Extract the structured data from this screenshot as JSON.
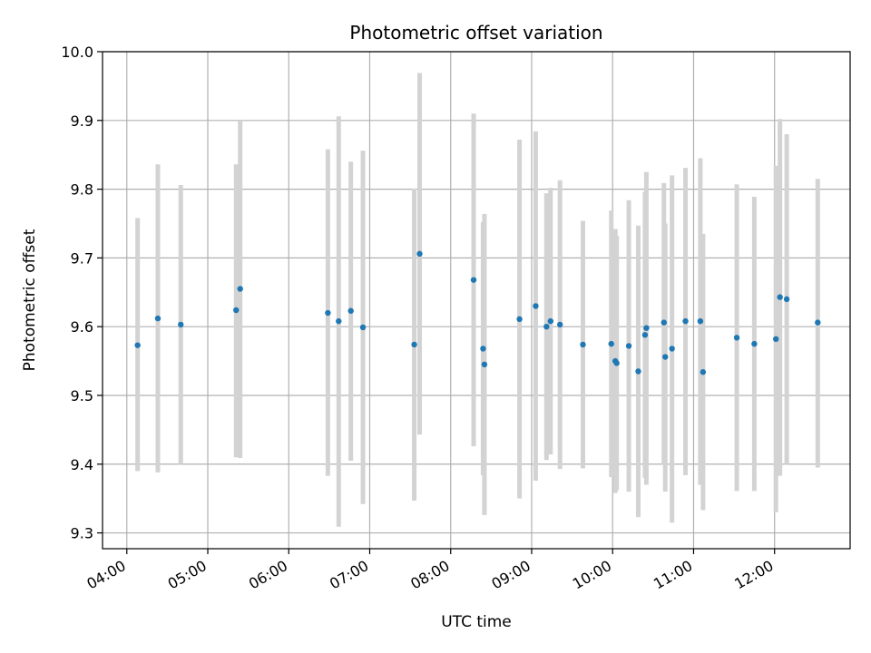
{
  "chart_data": {
    "type": "scatter",
    "title": "Photometric offset variation",
    "xlabel": "UTC time",
    "ylabel": "Photometric offset",
    "x_tick_labels": [
      "04:00",
      "05:00",
      "06:00",
      "07:00",
      "08:00",
      "09:00",
      "10:00",
      "11:00",
      "12:00"
    ],
    "y_tick_labels": [
      "9.3",
      "9.4",
      "9.5",
      "9.6",
      "9.7",
      "9.8",
      "9.9",
      "10.0"
    ],
    "xlim": [
      "03:42",
      "12:56"
    ],
    "ylim": [
      9.277,
      10.0
    ],
    "grid": true,
    "colors": {
      "points": "#1f77b4",
      "error_bars": "#d3d3d3",
      "grid": "#b0b0b0"
    },
    "points": [
      {
        "time": "04:08",
        "y": 9.573,
        "low": 9.39,
        "high": 9.758
      },
      {
        "time": "04:23",
        "y": 9.612,
        "low": 9.388,
        "high": 9.836
      },
      {
        "time": "04:40",
        "y": 9.603,
        "low": 9.4,
        "high": 9.806
      },
      {
        "time": "05:21",
        "y": 9.624,
        "low": 9.41,
        "high": 9.836
      },
      {
        "time": "05:24",
        "y": 9.655,
        "low": 9.409,
        "high": 9.9
      },
      {
        "time": "06:29",
        "y": 9.62,
        "low": 9.383,
        "high": 9.858
      },
      {
        "time": "06:37",
        "y": 9.608,
        "low": 9.309,
        "high": 9.906
      },
      {
        "time": "06:46",
        "y": 9.623,
        "low": 9.405,
        "high": 9.84
      },
      {
        "time": "06:55",
        "y": 9.599,
        "low": 9.342,
        "high": 9.856
      },
      {
        "time": "07:33",
        "y": 9.574,
        "low": 9.347,
        "high": 9.801
      },
      {
        "time": "07:37",
        "y": 9.706,
        "low": 9.443,
        "high": 9.969
      },
      {
        "time": "08:17",
        "y": 9.668,
        "low": 9.426,
        "high": 9.91
      },
      {
        "time": "08:24",
        "y": 9.568,
        "low": 9.384,
        "high": 9.752
      },
      {
        "time": "08:25",
        "y": 9.545,
        "low": 9.326,
        "high": 9.764
      },
      {
        "time": "08:51",
        "y": 9.611,
        "low": 9.35,
        "high": 9.872
      },
      {
        "time": "09:03",
        "y": 9.63,
        "low": 9.376,
        "high": 9.884
      },
      {
        "time": "09:11",
        "y": 9.6,
        "low": 9.406,
        "high": 9.794
      },
      {
        "time": "09:14",
        "y": 9.608,
        "low": 9.414,
        "high": 9.802
      },
      {
        "time": "09:21",
        "y": 9.603,
        "low": 9.393,
        "high": 9.813
      },
      {
        "time": "09:38",
        "y": 9.574,
        "low": 9.394,
        "high": 9.754
      },
      {
        "time": "09:59",
        "y": 9.575,
        "low": 9.381,
        "high": 9.769
      },
      {
        "time": "10:02",
        "y": 9.55,
        "low": 9.358,
        "high": 9.742
      },
      {
        "time": "10:03",
        "y": 9.547,
        "low": 9.362,
        "high": 9.732
      },
      {
        "time": "10:12",
        "y": 9.572,
        "low": 9.36,
        "high": 9.784
      },
      {
        "time": "10:19",
        "y": 9.535,
        "low": 9.323,
        "high": 9.747
      },
      {
        "time": "10:24",
        "y": 9.588,
        "low": 9.38,
        "high": 9.796
      },
      {
        "time": "10:25",
        "y": 9.598,
        "low": 9.37,
        "high": 9.825
      },
      {
        "time": "10:38",
        "y": 9.606,
        "low": 9.4,
        "high": 9.809
      },
      {
        "time": "10:39",
        "y": 9.556,
        "low": 9.36,
        "high": 9.75
      },
      {
        "time": "10:44",
        "y": 9.568,
        "low": 9.315,
        "high": 9.82
      },
      {
        "time": "10:54",
        "y": 9.608,
        "low": 9.384,
        "high": 9.831
      },
      {
        "time": "11:05",
        "y": 9.608,
        "low": 9.37,
        "high": 9.845
      },
      {
        "time": "11:07",
        "y": 9.534,
        "low": 9.333,
        "high": 9.735
      },
      {
        "time": "11:32",
        "y": 9.584,
        "low": 9.361,
        "high": 9.807
      },
      {
        "time": "11:45",
        "y": 9.575,
        "low": 9.361,
        "high": 9.789
      },
      {
        "time": "12:01",
        "y": 9.582,
        "low": 9.33,
        "high": 9.834
      },
      {
        "time": "12:04",
        "y": 9.643,
        "low": 9.383,
        "high": 9.902
      },
      {
        "time": "12:09",
        "y": 9.64,
        "low": 9.4,
        "high": 9.88
      },
      {
        "time": "12:32",
        "y": 9.606,
        "low": 9.395,
        "high": 9.815
      }
    ]
  }
}
